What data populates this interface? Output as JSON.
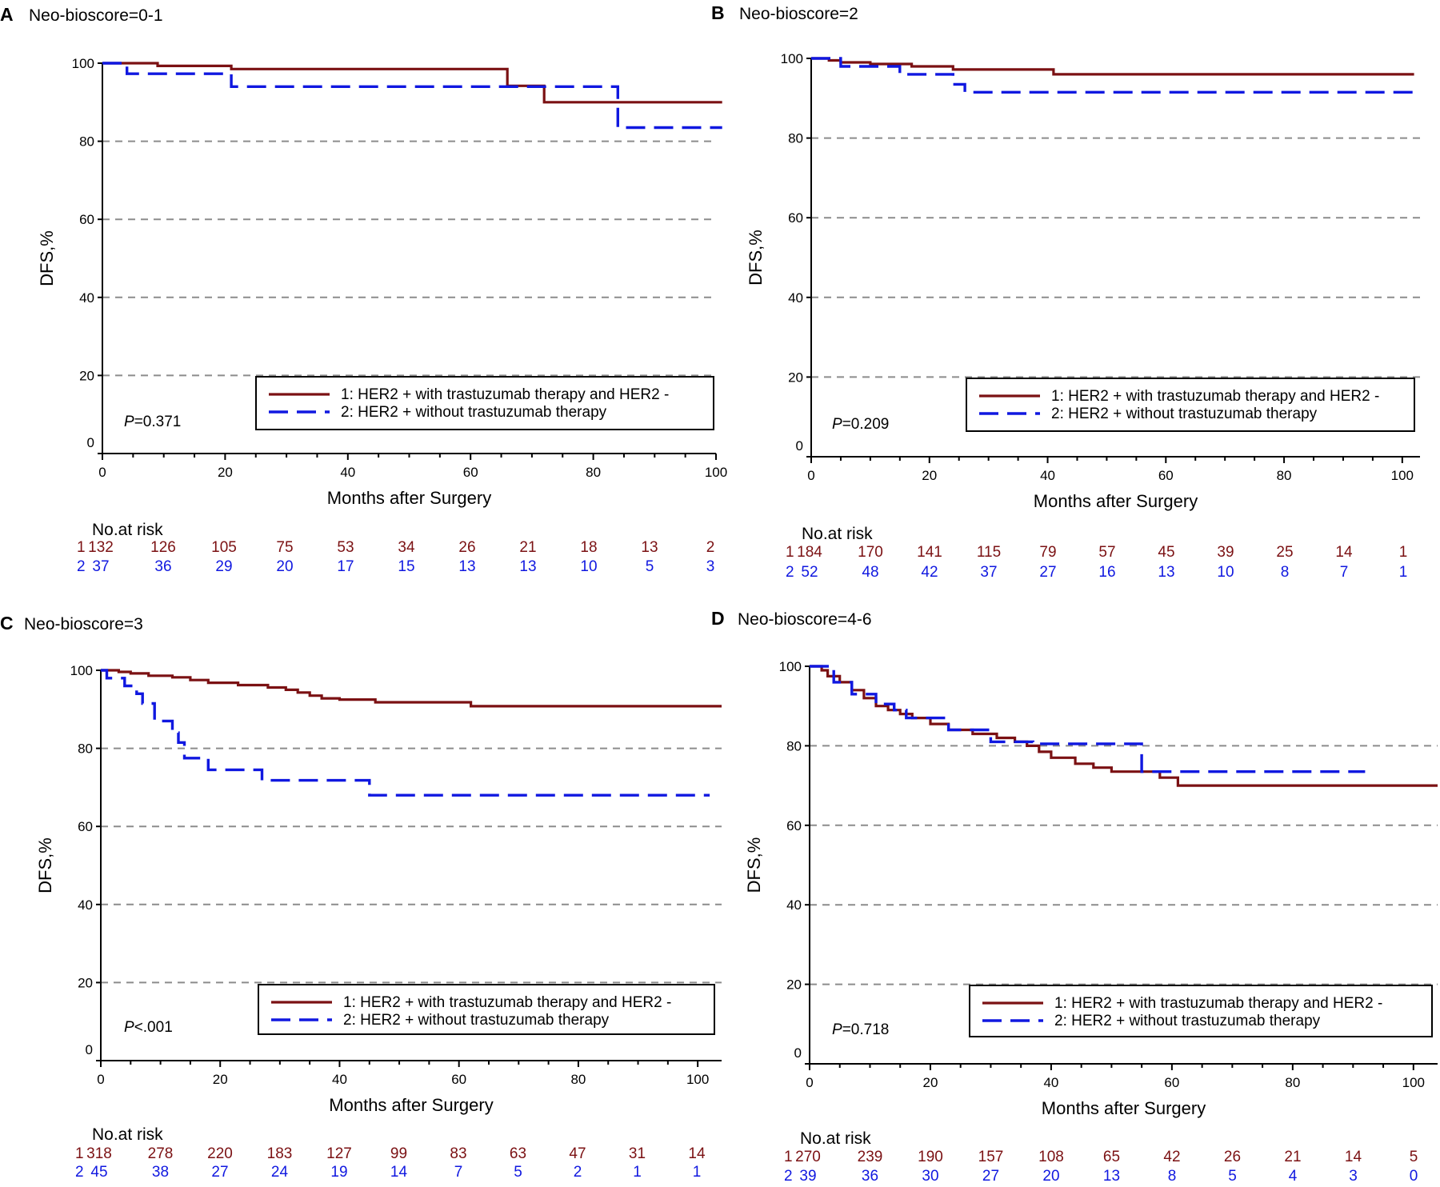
{
  "colors": {
    "group1": "#7b1113",
    "group2": "#1018e0",
    "grid": "#8c8c8c",
    "axis": "#000000"
  },
  "chart_data": [
    {
      "type": "line",
      "panel": "A",
      "title": "Neo-bioscore=0-1",
      "xlabel": "Months after Surgery",
      "ylabel": "DFS,%",
      "xlim": [
        0,
        100
      ],
      "ylim": [
        0,
        100
      ],
      "xticks": [
        0,
        20,
        40,
        60,
        80,
        100
      ],
      "yticks": [
        0,
        20,
        40,
        60,
        80,
        100
      ],
      "grid": "dashed horizontal at 20-80",
      "pvalue_label": "P",
      "pvalue_text": "=0.371",
      "legend": [
        "1: HER2 + with trastuzumab therapy and HER2 -",
        "2: HER2 + without trastuzumab therapy"
      ],
      "series": [
        {
          "name": "1: HER2 + with trastuzumab therapy and HER2 -",
          "style": "solid",
          "x": [
            0,
            4,
            9,
            21,
            66,
            72,
            101
          ],
          "y": [
            100,
            100,
            99.3,
            98.5,
            94.2,
            90,
            90
          ]
        },
        {
          "name": "2: HER2 + without trastuzumab therapy",
          "style": "dashed",
          "x": [
            0,
            4,
            21,
            84,
            101
          ],
          "y": [
            100,
            97.3,
            94,
            83.5,
            83.5
          ]
        }
      ],
      "risk_title": "No.at risk",
      "risk_x": [
        0,
        10,
        20,
        30,
        40,
        50,
        60,
        70,
        80,
        90,
        100
      ],
      "risk_labels": [
        "1",
        "2"
      ],
      "risk": [
        [
          "132",
          "126",
          "105",
          "75",
          "53",
          "34",
          "26",
          "21",
          "18",
          "13",
          "2"
        ],
        [
          "37",
          "36",
          "29",
          "20",
          "17",
          "15",
          "13",
          "13",
          "10",
          "5",
          "3"
        ]
      ]
    },
    {
      "type": "line",
      "panel": "B",
      "title": "Neo-bioscore=2",
      "xlabel": "Months after Surgery",
      "ylabel": "DFS,%",
      "xlim": [
        0,
        103
      ],
      "ylim": [
        0,
        100
      ],
      "xticks": [
        0,
        20,
        40,
        60,
        80,
        100
      ],
      "yticks": [
        0,
        20,
        40,
        60,
        80,
        100
      ],
      "grid": "dashed horizontal at 20-80",
      "pvalue_label": "P",
      "pvalue_text": "=0.209",
      "legend": [
        "1: HER2 + with trastuzumab therapy and HER2 -",
        "2: HER2 + without trastuzumab therapy"
      ],
      "series": [
        {
          "name": "1: HER2 + with trastuzumab therapy and HER2 -",
          "style": "solid",
          "x": [
            0,
            3,
            5,
            10,
            17,
            24,
            41,
            102
          ],
          "y": [
            100,
            99.5,
            99,
            98.6,
            98,
            97.2,
            96,
            96
          ]
        },
        {
          "name": "2: HER2 + without trastuzumab therapy",
          "style": "dashed",
          "x": [
            0,
            5,
            15,
            24,
            26,
            103
          ],
          "y": [
            100,
            98,
            96,
            93.5,
            91.5,
            91.5
          ]
        }
      ],
      "risk_title": "No.at risk",
      "risk_x": [
        0,
        10,
        20,
        30,
        40,
        50,
        60,
        70,
        80,
        90,
        100
      ],
      "risk_labels": [
        "1",
        "2"
      ],
      "risk": [
        [
          "184",
          "170",
          "141",
          "115",
          "79",
          "57",
          "45",
          "39",
          "25",
          "14",
          "1"
        ],
        [
          "52",
          "48",
          "42",
          "37",
          "27",
          "16",
          "13",
          "10",
          "8",
          "7",
          "1"
        ]
      ]
    },
    {
      "type": "line",
      "panel": "C",
      "title": "Neo-bioscore=3",
      "xlabel": "Months after Surgery",
      "ylabel": "DFS,%",
      "xlim": [
        0,
        104
      ],
      "ylim": [
        0,
        100
      ],
      "xticks": [
        0,
        20,
        40,
        60,
        80,
        100
      ],
      "yticks": [
        0,
        20,
        40,
        60,
        80,
        100
      ],
      "grid": "dashed horizontal at 20-80",
      "pvalue_label": "P",
      "pvalue_text": "<.001",
      "legend": [
        "1: HER2 + with trastuzumab therapy and HER2 -",
        "2: HER2 + without trastuzumab therapy"
      ],
      "series": [
        {
          "name": "1: HER2 + with trastuzumab therapy and HER2 -",
          "style": "solid",
          "x": [
            0,
            3,
            5,
            8,
            12,
            15,
            18,
            23,
            28,
            31,
            33,
            35,
            37,
            40,
            46,
            62,
            104
          ],
          "y": [
            100,
            99.6,
            99.2,
            98.6,
            98.2,
            97.5,
            96.8,
            96.2,
            95.6,
            95,
            94.3,
            93.5,
            92.8,
            92.5,
            91.8,
            90.8,
            90.8
          ]
        },
        {
          "name": "2: HER2 + without trastuzumab therapy",
          "style": "dashed",
          "x": [
            0,
            1,
            4,
            6,
            7,
            9,
            12,
            13,
            14,
            18,
            27,
            45,
            102
          ],
          "y": [
            100,
            98,
            96,
            94,
            91.5,
            87,
            84,
            81.5,
            77.5,
            74.5,
            71.8,
            68,
            68
          ]
        }
      ],
      "risk_title": "No.at risk",
      "risk_x": [
        0,
        10,
        20,
        30,
        40,
        50,
        60,
        70,
        80,
        90,
        100
      ],
      "risk_labels": [
        "1",
        "2"
      ],
      "risk": [
        [
          "318",
          "278",
          "220",
          "183",
          "127",
          "99",
          "83",
          "63",
          "47",
          "31",
          "14"
        ],
        [
          "45",
          "38",
          "27",
          "24",
          "19",
          "14",
          "7",
          "5",
          "2",
          "1",
          "1"
        ]
      ]
    },
    {
      "type": "line",
      "panel": "D",
      "title": "Neo-bioscore=4-6",
      "xlabel": "Months after Surgery",
      "ylabel": "DFS,%",
      "xlim": [
        0,
        104
      ],
      "ylim": [
        0,
        100
      ],
      "xticks": [
        0,
        20,
        40,
        60,
        80,
        100
      ],
      "yticks": [
        0,
        20,
        40,
        60,
        80,
        100
      ],
      "grid": "dashed horizontal at 20-80",
      "pvalue_label": "P",
      "pvalue_text": "=0.718",
      "legend": [
        "1: HER2 + with trastuzumab therapy and HER2 -",
        "2: HER2 + without trastuzumab therapy"
      ],
      "series": [
        {
          "name": "1: HER2 + with trastuzumab therapy and HER2 -",
          "style": "solid",
          "x": [
            0,
            2,
            3,
            5,
            7,
            9,
            11,
            13,
            15,
            17,
            20,
            23,
            27,
            31,
            34,
            36,
            38,
            40,
            44,
            47,
            50,
            55,
            58,
            61,
            104
          ],
          "y": [
            100,
            99,
            97.5,
            96,
            94,
            92,
            90,
            89,
            88,
            87,
            85.5,
            84,
            83,
            82,
            81,
            80,
            78.5,
            77,
            75.5,
            74.5,
            73.5,
            73.5,
            72,
            70,
            70
          ]
        },
        {
          "name": "2: HER2 + without trastuzumab therapy",
          "style": "dashed",
          "x": [
            0,
            4,
            7,
            11,
            14,
            16,
            23,
            30,
            37,
            55,
            92
          ],
          "y": [
            100,
            96,
            93,
            90.5,
            89,
            87,
            84,
            81,
            80.5,
            73.5,
            73.5
          ]
        }
      ],
      "risk_title": "No.at risk",
      "risk_x": [
        0,
        10,
        20,
        30,
        40,
        50,
        60,
        70,
        80,
        90,
        100
      ],
      "risk_labels": [
        "1",
        "2"
      ],
      "risk": [
        [
          "270",
          "239",
          "190",
          "157",
          "108",
          "65",
          "42",
          "26",
          "21",
          "14",
          "5"
        ],
        [
          "39",
          "36",
          "30",
          "27",
          "20",
          "13",
          "8",
          "5",
          "4",
          "3",
          "0"
        ]
      ]
    }
  ]
}
